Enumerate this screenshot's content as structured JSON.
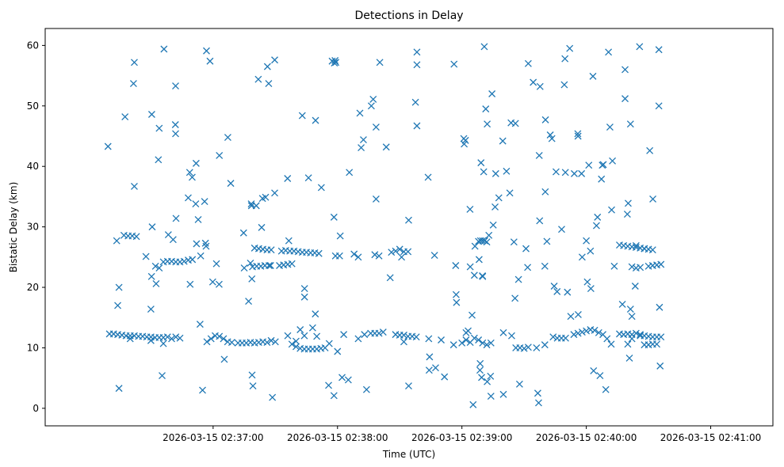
{
  "chart_data": {
    "type": "scatter",
    "title": "Detections in Delay",
    "xlabel": "Time (UTC)",
    "ylabel": "Bistatic Delay (km)",
    "marker": "x",
    "color": "#1f77b4",
    "grid": false,
    "legend": "none",
    "x_unit": "seconds after 2026-03-15 02:36:00",
    "xlim": [
      -21,
      330
    ],
    "ylim": [
      -2.9,
      62.8
    ],
    "x_ticks": [
      {
        "value": 60,
        "label": "2026-03-15 02:37:00"
      },
      {
        "value": 120,
        "label": "2026-03-15 02:38:00"
      },
      {
        "value": 180,
        "label": "2026-03-15 02:39:00"
      },
      {
        "value": 240,
        "label": "2026-03-15 02:40:00"
      },
      {
        "value": 300,
        "label": "2026-03-15 02:41:00"
      }
    ],
    "y_ticks": [
      {
        "value": 0,
        "label": "0"
      },
      {
        "value": 10,
        "label": "10"
      },
      {
        "value": 20,
        "label": "20"
      },
      {
        "value": 30,
        "label": "30"
      },
      {
        "value": 40,
        "label": "40"
      },
      {
        "value": 50,
        "label": "50"
      },
      {
        "value": 60,
        "label": "60"
      }
    ],
    "points": [
      [
        9.3,
        43.3
      ],
      [
        13.5,
        27.7
      ],
      [
        14.0,
        17.0
      ],
      [
        14.6,
        20.0
      ],
      [
        14.6,
        3.3
      ],
      [
        17.5,
        48.2
      ],
      [
        21.6,
        53.7
      ],
      [
        22.0,
        57.2
      ],
      [
        22.0,
        36.7
      ],
      [
        27.6,
        25.1
      ],
      [
        30.0,
        16.4
      ],
      [
        30.3,
        21.8
      ],
      [
        30.4,
        48.6
      ],
      [
        30.6,
        30.0
      ],
      [
        32.2,
        23.5
      ],
      [
        32.5,
        20.6
      ],
      [
        33.6,
        41.1
      ],
      [
        34.0,
        46.3
      ],
      [
        35.4,
        5.4
      ],
      [
        36.3,
        59.4
      ],
      [
        38.4,
        28.7
      ],
      [
        40.7,
        27.9
      ],
      [
        41.8,
        46.9
      ],
      [
        41.9,
        45.4
      ],
      [
        41.9,
        53.3
      ],
      [
        42.1,
        31.4
      ],
      [
        48.0,
        34.8
      ],
      [
        48.7,
        39.0
      ],
      [
        48.9,
        20.5
      ],
      [
        49.9,
        38.2
      ],
      [
        51.6,
        33.8
      ],
      [
        51.8,
        40.5
      ],
      [
        52.8,
        31.2
      ],
      [
        53.7,
        13.9
      ],
      [
        54.9,
        3.0
      ],
      [
        55.9,
        34.2
      ],
      [
        56.3,
        27.3
      ],
      [
        56.6,
        26.8
      ],
      [
        56.8,
        59.1
      ],
      [
        58.5,
        57.4
      ],
      [
        59.8,
        20.9
      ],
      [
        61.6,
        23.9
      ],
      [
        62.9,
        20.5
      ],
      [
        63.0,
        41.8
      ],
      [
        65.4,
        8.1
      ],
      [
        67.1,
        44.8
      ],
      [
        68.5,
        37.2
      ],
      [
        74.7,
        29.0
      ],
      [
        75.0,
        23.2
      ],
      [
        77.1,
        17.7
      ],
      [
        78.4,
        33.8
      ],
      [
        78.5,
        33.5
      ],
      [
        78.7,
        21.4
      ],
      [
        78.8,
        5.5
      ],
      [
        79.2,
        3.7
      ],
      [
        80.8,
        33.5
      ],
      [
        81.8,
        54.4
      ],
      [
        83.4,
        29.9
      ],
      [
        83.8,
        34.7
      ],
      [
        85.3,
        34.9
      ],
      [
        86.2,
        56.5
      ],
      [
        86.8,
        53.7
      ],
      [
        87.7,
        23.6
      ],
      [
        88.6,
        1.8
      ],
      [
        89.7,
        57.6
      ],
      [
        89.7,
        35.6
      ],
      [
        95.9,
        38.0
      ],
      [
        96.5,
        27.7
      ],
      [
        103.0,
        48.4
      ],
      [
        104.1,
        18.4
      ],
      [
        104.1,
        19.8
      ],
      [
        106.0,
        38.1
      ],
      [
        109.3,
        15.6
      ],
      [
        109.4,
        47.6
      ],
      [
        112.2,
        36.5
      ],
      [
        115.7,
        3.8
      ],
      [
        117.4,
        57.4
      ],
      [
        118.3,
        31.6
      ],
      [
        118.3,
        2.1
      ],
      [
        118.5,
        57.1
      ],
      [
        118.8,
        57.5
      ],
      [
        119.2,
        57.2
      ],
      [
        121.3,
        28.5
      ],
      [
        122.2,
        5.1
      ],
      [
        125.2,
        4.7
      ],
      [
        125.7,
        39.0
      ],
      [
        130.8,
        48.8
      ],
      [
        131.4,
        43.1
      ],
      [
        132.5,
        44.4
      ],
      [
        134.0,
        3.1
      ],
      [
        136.3,
        50.0
      ],
      [
        137.2,
        51.1
      ],
      [
        138.6,
        34.6
      ],
      [
        138.6,
        46.5
      ],
      [
        140.4,
        57.2
      ],
      [
        143.5,
        43.2
      ],
      [
        145.4,
        21.6
      ],
      [
        150.9,
        25.0
      ],
      [
        154.3,
        3.7
      ],
      [
        154.3,
        31.1
      ],
      [
        157.6,
        50.6
      ],
      [
        158.3,
        58.9
      ],
      [
        158.3,
        56.8
      ],
      [
        158.3,
        46.7
      ],
      [
        163.7,
        38.2
      ],
      [
        164.2,
        6.3
      ],
      [
        164.4,
        8.5
      ],
      [
        166.8,
        25.3
      ],
      [
        167.3,
        6.7
      ],
      [
        171.6,
        5.2
      ],
      [
        176.2,
        56.9
      ],
      [
        177.0,
        23.6
      ],
      [
        177.2,
        18.8
      ],
      [
        177.4,
        17.5
      ],
      [
        180.9,
        44.6
      ],
      [
        181.1,
        43.7
      ],
      [
        181.7,
        44.3
      ],
      [
        183.9,
        32.9
      ],
      [
        184.9,
        15.4
      ],
      [
        185.4,
        0.6
      ],
      [
        186.3,
        26.8
      ],
      [
        188.3,
        24.6
      ],
      [
        188.7,
        6.3
      ],
      [
        188.8,
        7.4
      ],
      [
        189.2,
        40.6
      ],
      [
        189.5,
        5.1
      ],
      [
        189.9,
        21.9
      ],
      [
        190.5,
        39.1
      ],
      [
        190.8,
        59.8
      ],
      [
        191.5,
        49.5
      ],
      [
        192.2,
        4.4
      ],
      [
        192.2,
        47.0
      ],
      [
        193.8,
        5.3
      ],
      [
        194.0,
        2.0
      ],
      [
        194.5,
        52.0
      ],
      [
        195.1,
        30.3
      ],
      [
        196.3,
        38.8
      ],
      [
        197.8,
        34.8
      ],
      [
        199.7,
        44.2
      ],
      [
        200.0,
        2.3
      ],
      [
        201.5,
        39.2
      ],
      [
        203.1,
        35.6
      ],
      [
        203.7,
        47.2
      ],
      [
        205.1,
        27.5
      ],
      [
        205.6,
        18.2
      ],
      [
        205.8,
        47.1
      ],
      [
        207.3,
        21.3
      ],
      [
        207.8,
        4.0
      ],
      [
        210.9,
        26.4
      ],
      [
        211.7,
        23.3
      ],
      [
        212.0,
        57.0
      ],
      [
        214.4,
        53.9
      ],
      [
        216.6,
        2.5
      ],
      [
        217.0,
        0.9
      ],
      [
        217.3,
        41.8
      ],
      [
        217.5,
        31.0
      ],
      [
        217.7,
        53.2
      ],
      [
        220.0,
        23.5
      ],
      [
        220.2,
        35.8
      ],
      [
        220.3,
        47.7
      ],
      [
        221.0,
        27.6
      ],
      [
        222.6,
        45.2
      ],
      [
        223.4,
        44.6
      ],
      [
        224.5,
        20.2
      ],
      [
        225.4,
        39.1
      ],
      [
        225.9,
        19.3
      ],
      [
        228.1,
        29.6
      ],
      [
        229.4,
        53.5
      ],
      [
        229.7,
        57.8
      ],
      [
        229.9,
        39.0
      ],
      [
        230.9,
        19.2
      ],
      [
        232.0,
        59.5
      ],
      [
        232.5,
        15.2
      ],
      [
        234.2,
        38.8
      ],
      [
        235.9,
        45.4
      ],
      [
        236.0,
        45.0
      ],
      [
        236.1,
        15.5
      ],
      [
        237.7,
        38.8
      ],
      [
        240.5,
        20.9
      ],
      [
        241.2,
        40.2
      ],
      [
        242.2,
        19.8
      ],
      [
        243.2,
        54.9
      ],
      [
        243.5,
        6.2
      ],
      [
        244.9,
        30.2
      ],
      [
        245.4,
        31.6
      ],
      [
        246.6,
        5.4
      ],
      [
        247.3,
        37.9
      ],
      [
        247.7,
        40.2
      ],
      [
        248.2,
        40.3
      ],
      [
        249.4,
        3.1
      ],
      [
        250.7,
        58.9
      ],
      [
        251.4,
        46.5
      ],
      [
        252.2,
        32.8
      ],
      [
        252.6,
        40.9
      ],
      [
        253.5,
        23.5
      ],
      [
        257.4,
        17.2
      ],
      [
        258.7,
        56.0
      ],
      [
        258.7,
        51.2
      ],
      [
        259.8,
        32.1
      ],
      [
        260.2,
        33.9
      ],
      [
        260.8,
        8.3
      ],
      [
        261.3,
        16.4
      ],
      [
        261.3,
        47.0
      ],
      [
        262.0,
        15.2
      ],
      [
        263.6,
        20.2
      ],
      [
        265.7,
        59.8
      ],
      [
        270.6,
        42.6
      ],
      [
        272.1,
        34.6
      ],
      [
        275.0,
        59.3
      ],
      [
        275.0,
        50.0
      ],
      [
        275.3,
        16.7
      ],
      [
        275.6,
        7.0
      ],
      [
        10,
        12.3
      ],
      [
        12,
        12.3
      ],
      [
        14,
        12.2
      ],
      [
        16,
        12.1
      ],
      [
        18,
        12.0
      ],
      [
        20,
        12.0
      ],
      [
        22,
        12.0
      ],
      [
        24,
        11.9
      ],
      [
        26,
        11.9
      ],
      [
        28,
        11.8
      ],
      [
        30,
        11.8
      ],
      [
        32,
        11.7
      ],
      [
        34,
        11.7
      ],
      [
        36,
        11.7
      ],
      [
        38,
        11.8
      ],
      [
        20,
        11.5
      ],
      [
        30,
        11.2
      ],
      [
        36,
        10.7
      ],
      [
        40,
        11.5
      ],
      [
        42,
        11.8
      ],
      [
        44,
        11.6
      ],
      [
        17,
        28.6
      ],
      [
        19,
        28.5
      ],
      [
        21,
        28.5
      ],
      [
        23,
        28.4
      ],
      [
        38,
        24.3
      ],
      [
        40,
        24.3
      ],
      [
        42,
        24.2
      ],
      [
        44,
        24.2
      ],
      [
        46,
        24.3
      ],
      [
        48,
        24.5
      ],
      [
        50,
        24.6
      ],
      [
        52,
        27.2
      ],
      [
        54,
        25.2
      ],
      [
        34,
        23.2
      ],
      [
        36,
        24.2
      ],
      [
        57,
        11.0
      ],
      [
        59,
        11.5
      ],
      [
        61,
        12.0
      ],
      [
        63,
        11.9
      ],
      [
        65,
        11.5
      ],
      [
        67,
        11.0
      ],
      [
        69,
        10.9
      ],
      [
        72,
        10.8
      ],
      [
        74,
        10.8
      ],
      [
        76,
        10.8
      ],
      [
        78,
        10.9
      ],
      [
        80,
        10.8
      ],
      [
        82,
        10.9
      ],
      [
        84,
        11.0
      ],
      [
        86,
        10.9
      ],
      [
        88,
        11.2
      ],
      [
        90,
        11.0
      ],
      [
        78,
        24.0
      ],
      [
        80,
        26.5
      ],
      [
        82,
        26.4
      ],
      [
        84,
        26.3
      ],
      [
        86,
        26.2
      ],
      [
        88,
        26.2
      ],
      [
        79,
        23.4
      ],
      [
        81,
        23.5
      ],
      [
        83,
        23.5
      ],
      [
        85,
        23.6
      ],
      [
        87,
        23.6
      ],
      [
        93,
        26.0
      ],
      [
        95,
        26.1
      ],
      [
        97,
        26.0
      ],
      [
        99,
        26.0
      ],
      [
        101,
        25.9
      ],
      [
        103,
        25.8
      ],
      [
        105,
        25.8
      ],
      [
        107,
        25.7
      ],
      [
        109,
        25.7
      ],
      [
        111,
        25.6
      ],
      [
        92,
        23.6
      ],
      [
        94,
        23.7
      ],
      [
        96,
        23.8
      ],
      [
        98,
        23.9
      ],
      [
        96,
        12.0
      ],
      [
        98,
        10.6
      ],
      [
        100,
        10.2
      ],
      [
        102,
        9.9
      ],
      [
        104,
        9.8
      ],
      [
        106,
        9.8
      ],
      [
        108,
        9.8
      ],
      [
        110,
        9.8
      ],
      [
        112,
        9.9
      ],
      [
        114,
        10.0
      ],
      [
        100,
        11.1
      ],
      [
        102,
        13.0
      ],
      [
        104,
        12.0
      ],
      [
        108,
        13.3
      ],
      [
        110,
        11.9
      ],
      [
        116,
        10.7
      ],
      [
        119,
        25.2
      ],
      [
        121,
        25.2
      ],
      [
        120,
        9.4
      ],
      [
        123,
        12.2
      ],
      [
        128,
        25.5
      ],
      [
        130,
        25.0
      ],
      [
        130,
        11.5
      ],
      [
        133,
        12.2
      ],
      [
        136,
        12.4
      ],
      [
        138,
        12.4
      ],
      [
        140,
        12.4
      ],
      [
        142,
        12.6
      ],
      [
        138,
        25.4
      ],
      [
        140,
        25.2
      ],
      [
        146,
        25.8
      ],
      [
        148,
        26.0
      ],
      [
        150,
        26.3
      ],
      [
        152,
        25.9
      ],
      [
        154,
        25.9
      ],
      [
        148,
        12.2
      ],
      [
        150,
        12.1
      ],
      [
        152,
        12.1
      ],
      [
        154,
        11.9
      ],
      [
        156,
        11.9
      ],
      [
        158,
        11.8
      ],
      [
        152,
        11.0
      ],
      [
        164,
        11.5
      ],
      [
        170,
        11.3
      ],
      [
        176,
        10.5
      ],
      [
        180,
        10.8
      ],
      [
        182,
        11.3
      ],
      [
        182,
        12.5
      ],
      [
        183,
        12.8
      ],
      [
        184,
        10.9
      ],
      [
        186,
        11.6
      ],
      [
        188,
        11.3
      ],
      [
        190,
        10.8
      ],
      [
        192,
        10.5
      ],
      [
        194,
        10.8
      ],
      [
        184,
        23.4
      ],
      [
        186,
        22.0
      ],
      [
        188,
        27.6
      ],
      [
        189,
        27.7
      ],
      [
        190,
        27.7
      ],
      [
        191,
        27.7
      ],
      [
        192,
        27.5
      ],
      [
        193,
        28.6
      ],
      [
        190,
        21.8
      ],
      [
        196,
        33.3
      ],
      [
        200,
        12.5
      ],
      [
        204,
        12.0
      ],
      [
        206,
        10.0
      ],
      [
        208,
        10.0
      ],
      [
        210,
        9.9
      ],
      [
        212,
        10.1
      ],
      [
        216,
        10.0
      ],
      [
        220,
        10.5
      ],
      [
        224,
        11.8
      ],
      [
        226,
        11.6
      ],
      [
        228,
        11.6
      ],
      [
        230,
        11.6
      ],
      [
        234,
        12.2
      ],
      [
        236,
        12.4
      ],
      [
        238,
        12.6
      ],
      [
        240,
        12.8
      ],
      [
        242,
        13.0
      ],
      [
        244,
        12.9
      ],
      [
        246,
        12.5
      ],
      [
        248,
        12.2
      ],
      [
        250,
        11.5
      ],
      [
        252,
        10.6
      ],
      [
        238,
        25.0
      ],
      [
        240,
        27.7
      ],
      [
        242,
        26.0
      ],
      [
        256,
        27.0
      ],
      [
        258,
        26.9
      ],
      [
        260,
        26.8
      ],
      [
        262,
        26.7
      ],
      [
        264,
        26.6
      ],
      [
        266,
        26.5
      ],
      [
        268,
        26.4
      ],
      [
        270,
        26.3
      ],
      [
        272,
        26.2
      ],
      [
        256,
        12.3
      ],
      [
        258,
        12.2
      ],
      [
        260,
        12.3
      ],
      [
        262,
        12.2
      ],
      [
        264,
        12.4
      ],
      [
        266,
        12.2
      ],
      [
        268,
        12.0
      ],
      [
        270,
        11.9
      ],
      [
        272,
        11.8
      ],
      [
        274,
        11.8
      ],
      [
        260,
        10.6
      ],
      [
        262,
        11.5
      ],
      [
        266,
        12.0
      ],
      [
        268,
        10.5
      ],
      [
        270,
        10.5
      ],
      [
        272,
        10.6
      ],
      [
        274,
        10.6
      ],
      [
        264,
        26.9
      ],
      [
        268,
        26.4
      ],
      [
        272,
        23.6
      ],
      [
        274,
        23.7
      ],
      [
        262,
        23.4
      ],
      [
        264,
        23.2
      ],
      [
        266,
        23.3
      ],
      [
        270,
        23.5
      ],
      [
        276,
        23.8
      ],
      [
        276,
        11.8
      ]
    ]
  }
}
